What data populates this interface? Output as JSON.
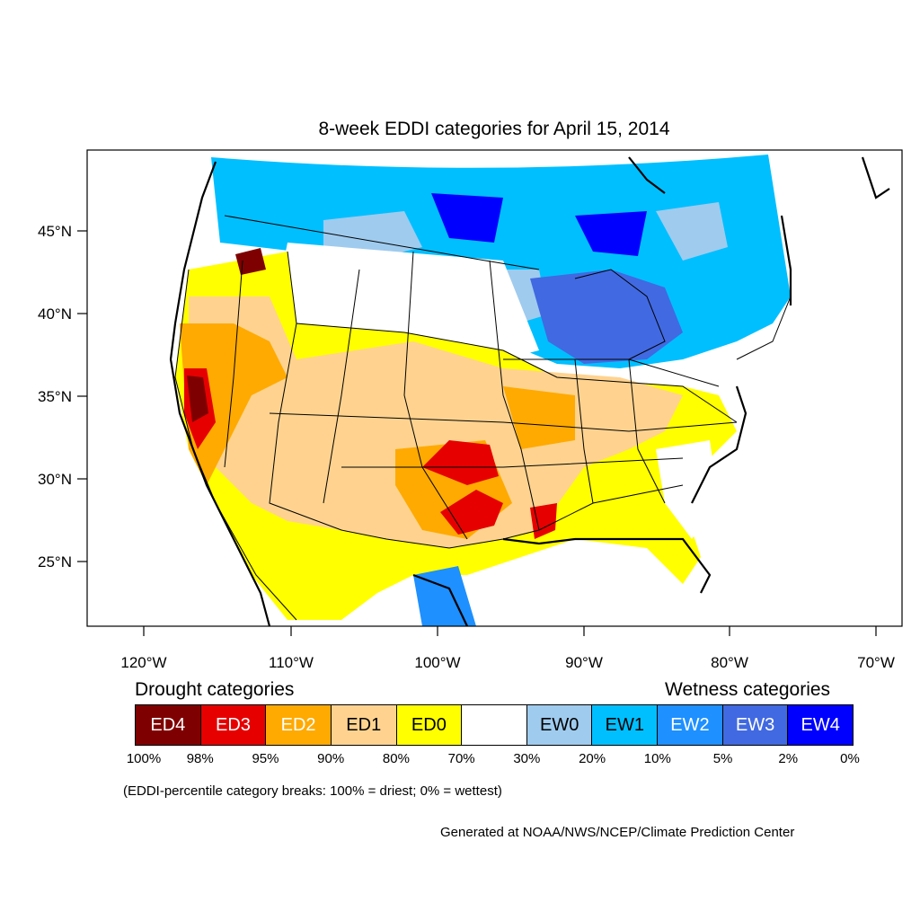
{
  "title": "8-week EDDI categories for April 15, 2014",
  "axes": {
    "lat_labels": [
      "45°N",
      "40°N",
      "35°N",
      "30°N",
      "25°N"
    ],
    "lon_labels": [
      "120°W",
      "110°W",
      "100°W",
      "90°W",
      "80°W",
      "70°W"
    ]
  },
  "legend": {
    "drought_title": "Drought categories",
    "wetness_title": "Wetness categories",
    "categories": [
      {
        "label": "ED4",
        "color": "#7f0000",
        "text_color": "#ffffff"
      },
      {
        "label": "ED3",
        "color": "#e60000",
        "text_color": "#ffffff"
      },
      {
        "label": "ED2",
        "color": "#ffaa00",
        "text_color": "#ffffff"
      },
      {
        "label": "ED1",
        "color": "#ffd38f",
        "text_color": "#000000"
      },
      {
        "label": "ED0",
        "color": "#ffff00",
        "text_color": "#000000"
      },
      {
        "label": "",
        "color": "#ffffff",
        "text_color": "#000000"
      },
      {
        "label": "EW0",
        "color": "#9fcbee",
        "text_color": "#000000"
      },
      {
        "label": "EW1",
        "color": "#00bfff",
        "text_color": "#000000"
      },
      {
        "label": "EW2",
        "color": "#1e90ff",
        "text_color": "#ffffff"
      },
      {
        "label": "EW3",
        "color": "#4169e1",
        "text_color": "#ffffff"
      },
      {
        "label": "EW4",
        "color": "#0000ff",
        "text_color": "#ffffff"
      }
    ],
    "breaks": [
      "100%",
      "98%",
      "95%",
      "90%",
      "80%",
      "70%",
      "30%",
      "20%",
      "10%",
      "5%",
      "2%",
      "0%"
    ]
  },
  "note": "(EDDI-percentile category breaks: 100% = driest; 0% = wettest)",
  "credit": "Generated at NOAA/NWS/NCEP/Climate Prediction Center"
}
